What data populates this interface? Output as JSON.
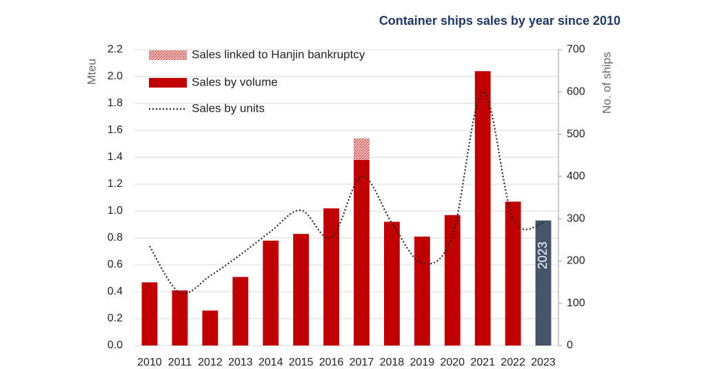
{
  "chart_data": {
    "type": "bar-line",
    "title": "Container ships sales by year since 2010",
    "y_label": "Mteu",
    "y2_label": "No. of ships",
    "categories": [
      "2010",
      "2011",
      "2012",
      "2013",
      "2014",
      "2015",
      "2016",
      "2017",
      "2018",
      "2019",
      "2020",
      "2021",
      "2022",
      "2023"
    ],
    "series": [
      {
        "name": "Sales linked to Hanjin bankruptcy",
        "type": "bar",
        "stacked_on": 1,
        "color": "#e8a0a0",
        "values": [
          null,
          null,
          null,
          null,
          null,
          null,
          null,
          0.16,
          null,
          null,
          null,
          null,
          null,
          null
        ]
      },
      {
        "name": "Sales by volume",
        "type": "bar",
        "color": "#c00000",
        "colors": [
          "#c00000",
          "#c00000",
          "#c00000",
          "#c00000",
          "#c00000",
          "#c00000",
          "#c00000",
          "#c00000",
          "#c00000",
          "#c00000",
          "#c00000",
          "#c00000",
          "#c00000",
          "#44546a"
        ],
        "values": [
          0.47,
          0.41,
          0.26,
          0.51,
          0.78,
          0.83,
          1.02,
          1.38,
          0.92,
          0.81,
          0.97,
          2.04,
          1.07,
          0.93
        ]
      },
      {
        "name": "Sales by units",
        "type": "line",
        "axis": "y2",
        "color": "#222222",
        "values": [
          235,
          125,
          165,
          215,
          270,
          320,
          255,
          400,
          290,
          195,
          260,
          600,
          300,
          290
        ]
      }
    ],
    "ylim": [
      0,
      2.2
    ],
    "yticks": [
      {
        "value": 0,
        "label": "0.0"
      },
      0.2,
      0.4,
      0.6,
      0.8,
      {
        "value": 1,
        "label": "1.0"
      },
      1.2,
      1.4,
      1.6,
      1.8,
      {
        "value": 2,
        "label": "2.0"
      },
      2.2
    ],
    "y2lim": [
      0,
      700
    ],
    "y2ticks": [
      0,
      100,
      200,
      300,
      400,
      500,
      600,
      700
    ],
    "grid": true,
    "bar_label_category": 13
  }
}
